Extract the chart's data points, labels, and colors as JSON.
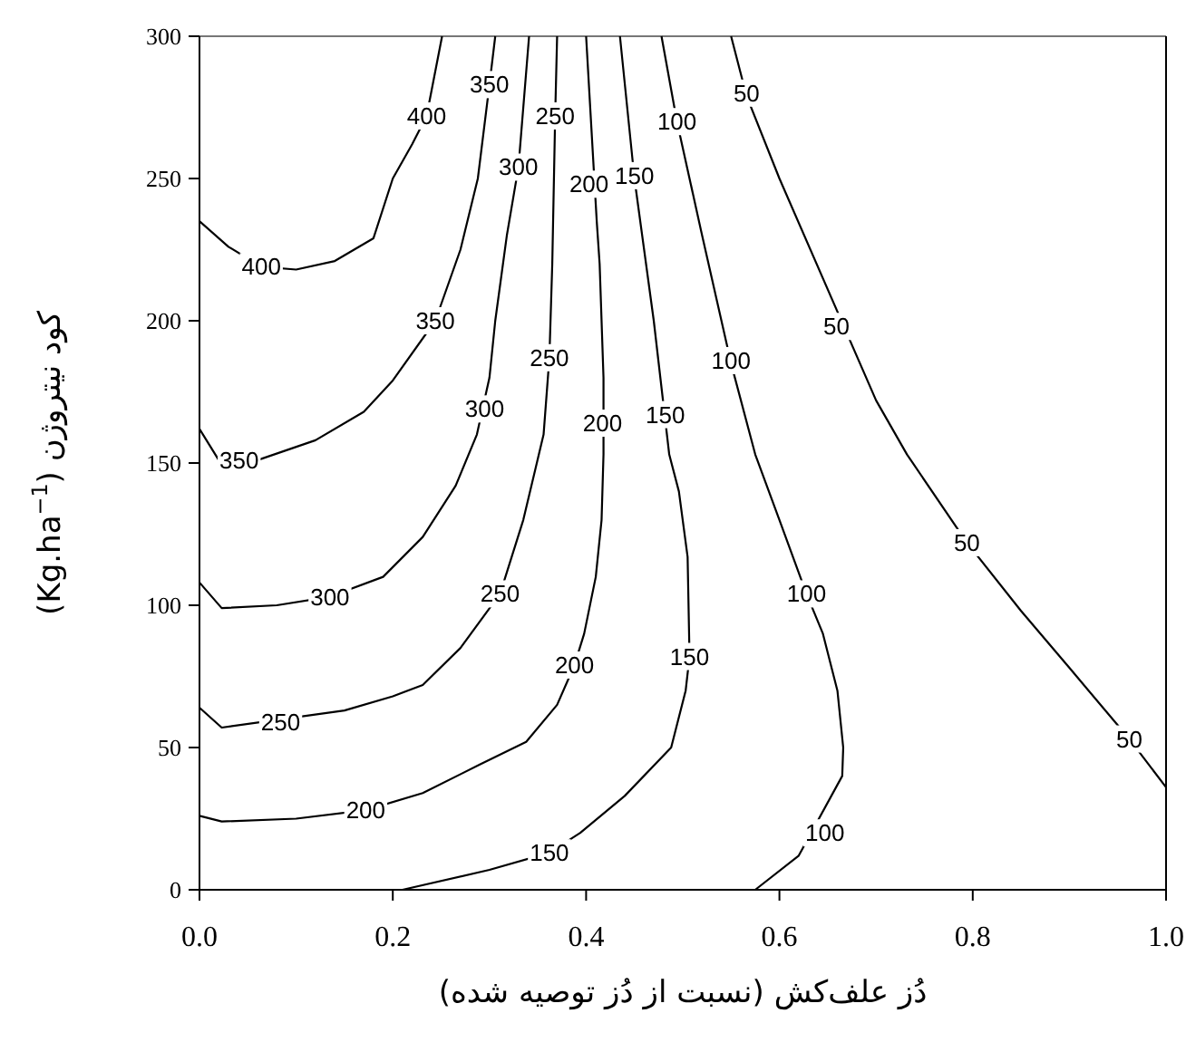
{
  "chart_data": {
    "type": "line",
    "xlabel": "دُز علف‌کش (نسبت از دُز توصیه شده)",
    "ylabel": "کود نیتروژن   (Kg.ha$^{−1}$)",
    "line_style": "solid",
    "xlim": [
      0,
      1
    ],
    "ylim": [
      0,
      300
    ],
    "xticks": [
      {
        "value": 0,
        "label": "0.0"
      },
      {
        "value": 0.2,
        "label": "0.2"
      },
      {
        "value": 0.4,
        "label": "0.4"
      },
      {
        "value": 0.6,
        "label": "0.6"
      },
      {
        "value": 0.8,
        "label": "0.8"
      },
      {
        "value": 1,
        "label": "1.0"
      }
    ],
    "yticks": [
      0,
      50,
      100,
      150,
      200,
      250,
      300
    ],
    "series": [
      {
        "color": "#000000",
        "x": [
          0,
          0.03,
          0.064,
          0.1,
          0.14,
          0.18,
          0.2,
          0.22,
          0.235,
          0.251
        ],
        "values": [
          235,
          226,
          219,
          218,
          221,
          229,
          250,
          262,
          272,
          300
        ]
      },
      {
        "color": "#000000",
        "x": [
          0,
          0.02,
          0.06,
          0.12,
          0.17,
          0.2,
          0.244,
          0.27,
          0.288,
          0.3,
          0.306
        ],
        "values": [
          162,
          151,
          151,
          158,
          168,
          179,
          200,
          225,
          250,
          283,
          300
        ]
      },
      {
        "color": "#000000",
        "x": [
          0,
          0.023,
          0.08,
          0.135,
          0.19,
          0.231,
          0.265,
          0.287,
          0.3,
          0.306,
          0.318,
          0.33,
          0.341
        ],
        "values": [
          108,
          99,
          100,
          103,
          110,
          124,
          142,
          160,
          180,
          200,
          230,
          254,
          300
        ]
      },
      {
        "color": "#000000",
        "x": [
          0,
          0.023,
          0.15,
          0.2,
          0.231,
          0.27,
          0.311,
          0.335,
          0.356,
          0.362,
          0.365,
          0.368,
          0.37
        ],
        "values": [
          64,
          57,
          63,
          68,
          72,
          85,
          104,
          130,
          160,
          187,
          220,
          272,
          300
        ]
      },
      {
        "color": "#000000",
        "x": [
          0,
          0.023,
          0.1,
          0.172,
          0.231,
          0.29,
          0.338,
          0.37,
          0.388,
          0.398,
          0.41,
          0.416,
          0.418,
          0.418,
          0.414,
          0.411,
          0.4
        ],
        "values": [
          26,
          24,
          25,
          28,
          34,
          44,
          52,
          65,
          79,
          90,
          110,
          130,
          153,
          180,
          220,
          235,
          300
        ]
      },
      {
        "color": "#000000",
        "x": [
          0.21,
          0.3,
          0.362,
          0.394,
          0.44,
          0.488,
          0.503,
          0.507,
          0.505,
          0.496,
          0.486,
          0.47,
          0.45,
          0.435
        ],
        "values": [
          0,
          7,
          13,
          20,
          33,
          50,
          70,
          82,
          117,
          140,
          153,
          200,
          250,
          300
        ]
      },
      {
        "color": "#000000",
        "x": [
          0.575,
          0.62,
          0.665,
          0.666,
          0.66,
          0.645,
          0.628,
          0.6,
          0.575,
          0.55,
          0.52,
          0.494,
          0.478
        ],
        "values": [
          0,
          12,
          40,
          50,
          70,
          90,
          104,
          130,
          153,
          185,
          230,
          270,
          300
        ]
      },
      {
        "color": "#000000",
        "x": [
          0.55,
          0.566,
          0.6,
          0.7,
          0.732,
          0.794,
          0.85,
          0.9,
          0.962,
          1.0
        ],
        "values": [
          300,
          279,
          250,
          172,
          153,
          122,
          98,
          78,
          53,
          36
        ]
      }
    ],
    "annotations": [
      {
        "text": "400",
        "x": 0.235,
        "y": 272
      },
      {
        "text": "400",
        "x": 0.064,
        "y": 219
      },
      {
        "text": "350",
        "x": 0.3,
        "y": 283
      },
      {
        "text": "350",
        "x": 0.244,
        "y": 200
      },
      {
        "text": "350",
        "x": 0.041,
        "y": 151
      },
      {
        "text": "300",
        "x": 0.33,
        "y": 254
      },
      {
        "text": "300",
        "x": 0.295,
        "y": 169
      },
      {
        "text": "300",
        "x": 0.135,
        "y": 103
      },
      {
        "text": "250",
        "x": 0.368,
        "y": 272
      },
      {
        "text": "250",
        "x": 0.362,
        "y": 187
      },
      {
        "text": "250",
        "x": 0.311,
        "y": 104
      },
      {
        "text": "250",
        "x": 0.084,
        "y": 59
      },
      {
        "text": "200",
        "x": 0.403,
        "y": 248
      },
      {
        "text": "200",
        "x": 0.417,
        "y": 164
      },
      {
        "text": "200",
        "x": 0.388,
        "y": 79
      },
      {
        "text": "200",
        "x": 0.172,
        "y": 28
      },
      {
        "text": "150",
        "x": 0.45,
        "y": 251
      },
      {
        "text": "150",
        "x": 0.482,
        "y": 167
      },
      {
        "text": "150",
        "x": 0.507,
        "y": 82
      },
      {
        "text": "150",
        "x": 0.362,
        "y": 13
      },
      {
        "text": "100",
        "x": 0.494,
        "y": 270
      },
      {
        "text": "100",
        "x": 0.55,
        "y": 186
      },
      {
        "text": "100",
        "x": 0.628,
        "y": 104
      },
      {
        "text": "100",
        "x": 0.647,
        "y": 20
      },
      {
        "text": "50",
        "x": 0.566,
        "y": 280
      },
      {
        "text": "50",
        "x": 0.659,
        "y": 198
      },
      {
        "text": "50",
        "x": 0.794,
        "y": 122
      },
      {
        "text": "50",
        "x": 0.962,
        "y": 53
      }
    ]
  }
}
